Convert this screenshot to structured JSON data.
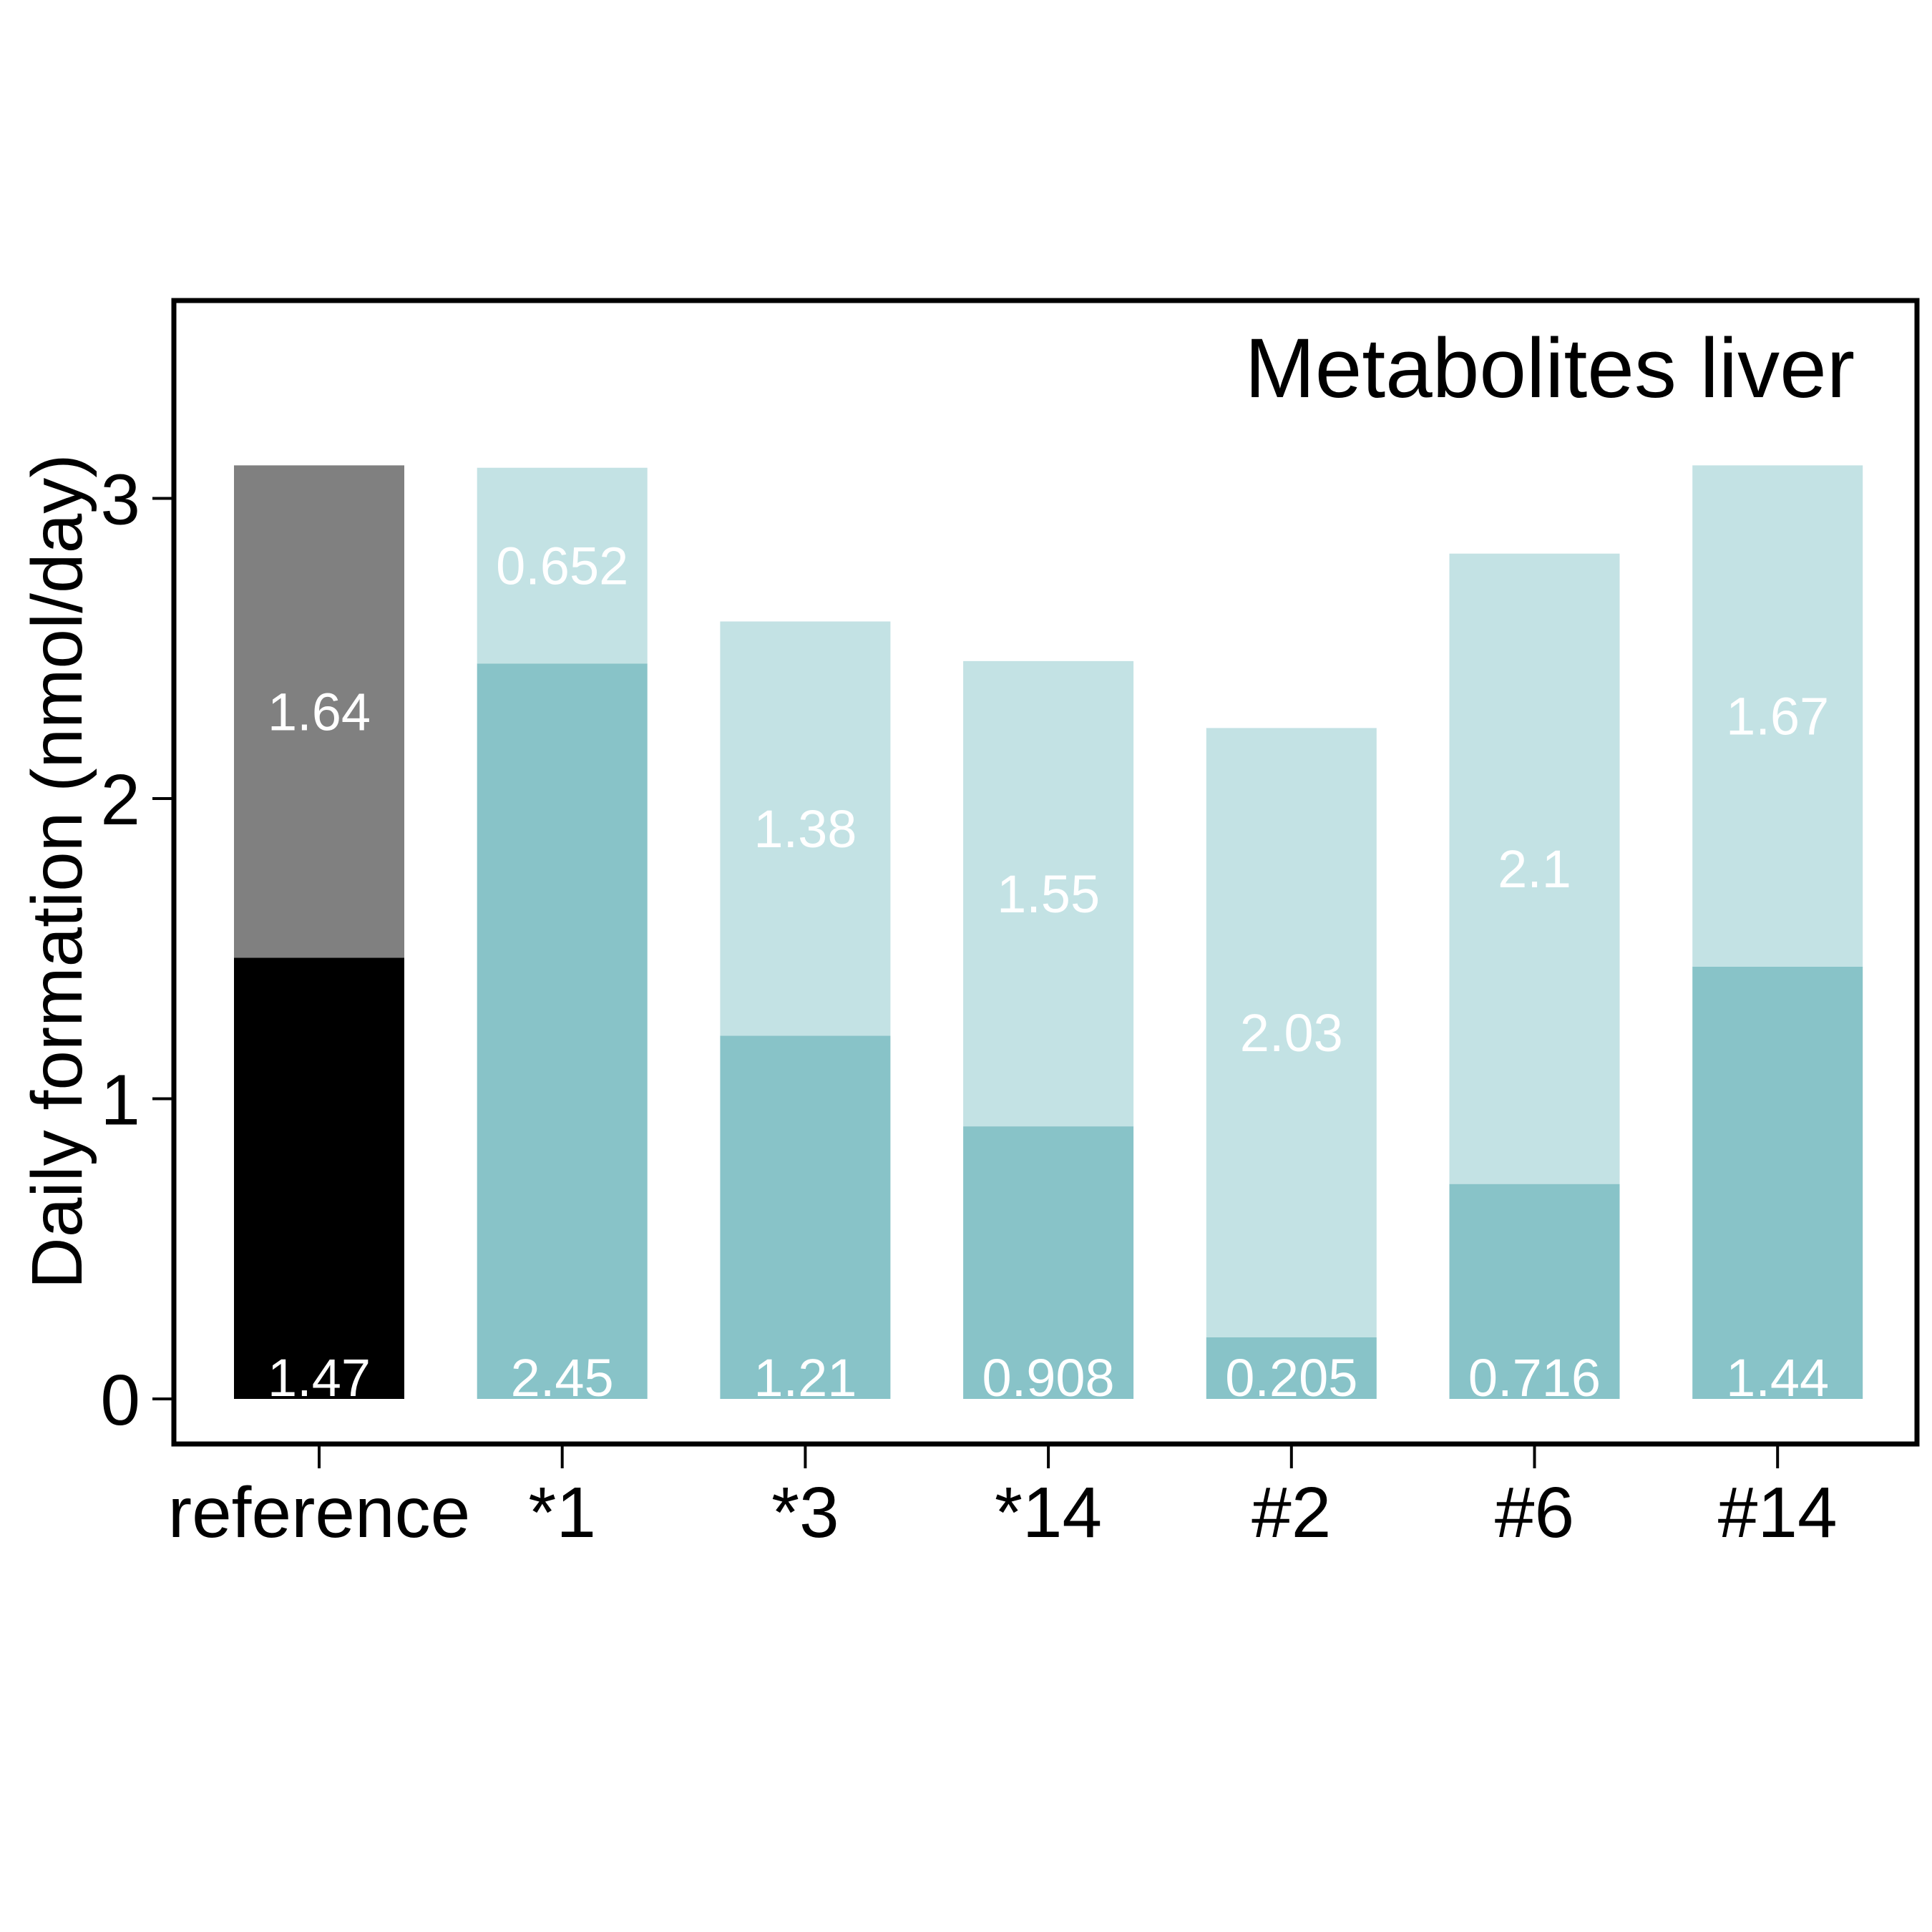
{
  "chart_data": {
    "type": "bar",
    "stacked": true,
    "title": "Metabolites liver",
    "xlabel": "",
    "ylabel": "Daily formation (nmol/day)",
    "ylim": [
      0,
      3.7
    ],
    "yticks": [
      0,
      1,
      2,
      3
    ],
    "ytick_labels": [
      "0",
      "1",
      "2",
      "3"
    ],
    "grid": false,
    "categories": [
      "reference",
      "*1",
      "*3",
      "*14",
      "#2",
      "#6",
      "#14"
    ],
    "series": [
      {
        "values": [
          1.47,
          2.45,
          1.21,
          0.908,
          0.205,
          0.716,
          1.44
        ],
        "labels": [
          "1.47",
          "2.45",
          "1.21",
          "0.908",
          "0.205",
          "0.716",
          "1.44"
        ]
      },
      {
        "values": [
          1.64,
          0.652,
          1.38,
          1.55,
          2.03,
          2.1,
          1.67
        ],
        "labels": [
          "1.64",
          "0.652",
          "1.38",
          "1.55",
          "2.03",
          "2.1",
          "1.67"
        ]
      }
    ],
    "colors": {
      "reference_bottom": "#000000",
      "reference_top": "#808080",
      "bottom": "#88c3c8",
      "top": "#c3e2e4",
      "bar_label": "#ffffff",
      "frame": "#000000"
    }
  }
}
